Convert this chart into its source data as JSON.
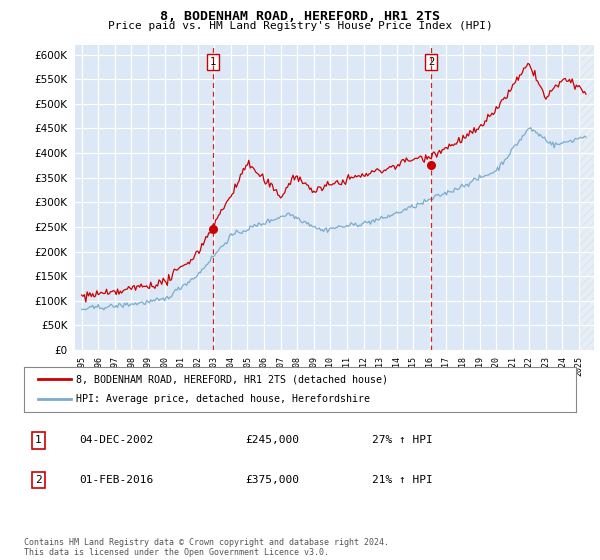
{
  "title": "8, BODENHAM ROAD, HEREFORD, HR1 2TS",
  "subtitle": "Price paid vs. HM Land Registry's House Price Index (HPI)",
  "ylim": [
    0,
    620000
  ],
  "yticks": [
    0,
    50000,
    100000,
    150000,
    200000,
    250000,
    300000,
    350000,
    400000,
    450000,
    500000,
    550000,
    600000
  ],
  "red_line_color": "#cc0000",
  "blue_line_color": "#7aadcc",
  "dashed_line_color": "#cc0000",
  "legend_line1": "8, BODENHAM ROAD, HEREFORD, HR1 2TS (detached house)",
  "legend_line2": "HPI: Average price, detached house, Herefordshire",
  "table_row1": [
    "1",
    "04-DEC-2002",
    "£245,000",
    "27% ↑ HPI"
  ],
  "table_row2": [
    "2",
    "01-FEB-2016",
    "£375,000",
    "21% ↑ HPI"
  ],
  "footer": "Contains HM Land Registry data © Crown copyright and database right 2024.\nThis data is licensed under the Open Government Licence v3.0.",
  "bg_color": "#dce8f5",
  "x_start_year": 1995,
  "x_end_year": 2025
}
